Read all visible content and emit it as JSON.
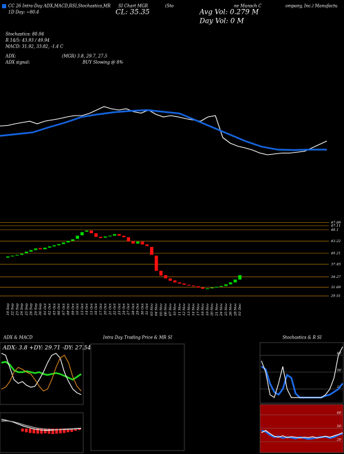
{
  "header": {
    "title_parts": [
      "CC 26 Intra-Day ADX,MACD,R",
      "SI,Stochastics,MR",
      "SI Chart MGR",
      "(Sto",
      "ne Munsch C",
      "ompany, Inc.) Manufactu"
    ],
    "day_change": "1D Day: ~80.4",
    "close": "CL: 35.35",
    "avg_vol": "Avg Vol: 0.279 M",
    "day_vol": "Day Vol: 0  M",
    "stochastics": "Stochastics: 80.94",
    "rsi": "R 14/5: 43.93 / 49.94",
    "macd": "MACD: 31.92, 33.82, -1.4 C",
    "adx_label": "ADX:",
    "adx_values": "(MGR) 3.8, 29.7, 27.5",
    "adx_signal_label": "ADX  signal:",
    "adx_signal": "BUY Slowing @ 8%"
  },
  "chart_data": [
    {
      "type": "line",
      "ylim": [
        29,
        51.4
      ],
      "series": [
        {
          "color": "#ffffff",
          "values": [
            41.3,
            41.4,
            41.8,
            42.1,
            42.4,
            41.8,
            42.4,
            42.7,
            43.0,
            43.4,
            43.7,
            43.7,
            44.2,
            45.0,
            45.8,
            45.3,
            45.0,
            45.3,
            44.6,
            44.3,
            45.0,
            44.0,
            43.4,
            43.7,
            43.4,
            43.0,
            42.7,
            42.4,
            43.4,
            43.7,
            38.6,
            37.3,
            36.6,
            36.2,
            35.7,
            35.0,
            34.6,
            34.8,
            35.0,
            35.0,
            35.2,
            35.4,
            36.2,
            37.0,
            37.8
          ]
        },
        {
          "color": "#1565e0",
          "values": [
            39.0,
            39.4,
            39.8,
            41.0,
            42.1,
            43.4,
            44.0,
            44.5,
            44.8,
            45.0,
            44.6,
            44.2,
            42.6,
            41.0,
            39.4,
            37.8,
            36.5,
            35.8,
            35.7,
            35.8,
            35.8
          ]
        }
      ]
    },
    {
      "type": "candlestick",
      "ylim": [
        28.5,
        48.5
      ],
      "up_color": "#00dd00",
      "down_color": "#ff1010",
      "level_color": "#b8760b",
      "yticks": [
        47.89,
        47.11,
        46.1,
        43.22,
        40.21,
        37.45,
        34.27,
        31.69,
        29.51
      ],
      "categories": [
        "19 Sep",
        "22 Sep",
        "23 Sep",
        "24 Sep",
        "25 Sep",
        "26 Sep",
        "29 Sep",
        "30 Sep",
        "01 Oct",
        "02 Oct",
        "03 Oct",
        "06 Oct",
        "07 Oct",
        "08 Oct",
        "09 Oct",
        "10 Oct",
        "13 Oct",
        "14 Oct",
        "15 Oct",
        "16 Oct",
        "17 Oct",
        "20 Oct",
        "21 Oct",
        "22 Oct",
        "23 Oct",
        "24 Oct",
        "27 Oct",
        "28 Oct",
        "29 Oct",
        "30 Oct",
        "31 Oct",
        "03 Nov",
        "04 Nov",
        "05 Nov",
        "06 Nov",
        "07 Nov",
        "10 Nov",
        "11 Nov",
        "12 Nov",
        "13 Nov",
        "14 Nov",
        "17 Nov",
        "18 Nov",
        "19 Nov",
        "20 Nov",
        "21 Nov",
        "24 Nov",
        "25 Nov",
        "26 Nov",
        "28 Nov",
        "01 Dec"
      ],
      "open": [
        39.1,
        39.4,
        39.6,
        39.8,
        40.2,
        40.6,
        41.0,
        41.5,
        41.2,
        41.6,
        41.9,
        42.2,
        42.5,
        42.9,
        43.3,
        43.8,
        44.7,
        45.6,
        45.9,
        45.2,
        44.3,
        44.1,
        44.4,
        44.6,
        45.0,
        44.6,
        44.2,
        43.2,
        42.6,
        43.1,
        42.4,
        41.8,
        39.6,
        35.8,
        34.7,
        33.9,
        33.4,
        32.9,
        32.6,
        32.3,
        32.1,
        31.9,
        31.6,
        31.2,
        31.4,
        31.6,
        31.8,
        32.0,
        32.4,
        32.9,
        33.6
      ],
      "close": [
        39.4,
        39.6,
        39.8,
        40.1,
        40.6,
        41.0,
        41.4,
        41.2,
        41.6,
        41.9,
        42.2,
        42.5,
        42.9,
        43.3,
        43.7,
        44.6,
        45.5,
        45.9,
        45.2,
        44.3,
        44.0,
        44.4,
        44.6,
        45.0,
        44.6,
        44.2,
        43.2,
        42.6,
        43.1,
        42.4,
        42.0,
        39.8,
        35.8,
        34.6,
        33.9,
        33.3,
        32.9,
        32.6,
        32.3,
        32.1,
        31.9,
        31.6,
        31.3,
        31.4,
        31.6,
        31.8,
        32.0,
        32.4,
        32.9,
        33.6,
        34.7
      ]
    },
    {
      "type": "line",
      "title": "ADX & MACD",
      "subtitle": "ADX: 3.8  +DY: 29.71  -DY: 27.54",
      "ylim": [
        0,
        60
      ],
      "series": [
        {
          "color": "#22dd22",
          "values": [
            40,
            41,
            38,
            32,
            30,
            30,
            31,
            30,
            29,
            30,
            28,
            27,
            28,
            29,
            28,
            26,
            24,
            22,
            25,
            28
          ]
        },
        {
          "color": "#ffffff",
          "values": [
            50,
            48,
            35,
            22,
            18,
            20,
            16,
            14,
            15,
            22,
            30,
            40,
            48,
            50,
            45,
            30,
            20,
            12,
            8,
            6
          ]
        },
        {
          "color": "#e08a1e",
          "values": [
            12,
            14,
            20,
            30,
            35,
            33,
            30,
            28,
            22,
            15,
            10,
            12,
            22,
            35,
            45,
            48,
            40,
            25,
            15,
            10
          ]
        }
      ]
    },
    {
      "type": "bar",
      "ylim": [
        -6,
        3
      ],
      "color": "#ff2020",
      "values": [
        -0.8,
        -1.0,
        -1.2,
        -1.3,
        -1.4,
        -1.4,
        -1.3,
        -1.4,
        -1.5,
        -1.4,
        -1.3,
        -1.2,
        -1.0,
        -0.9,
        -0.6,
        -0.4
      ],
      "series": [
        {
          "color": "#ffffff",
          "values": [
            2.5,
            2.2,
            1.8,
            1.2,
            0.6,
            0.2,
            -0.2,
            -0.4,
            -0.5,
            -0.4,
            -0.3,
            -0.2,
            -0.1,
            0.0,
            0.1
          ]
        },
        {
          "color": "#bbbbbb",
          "values": [
            2.0,
            2.1,
            1.9,
            1.5,
            1.0,
            0.6,
            0.2,
            0.0,
            -0.2,
            -0.3,
            -0.3,
            -0.3,
            -0.2,
            -0.1,
            0.0
          ]
        }
      ]
    },
    {
      "type": "panel",
      "title": "Intra Day Trading Price & MR SI"
    },
    {
      "type": "line",
      "title": "Stochastics & R SI",
      "ylim": [
        0,
        100
      ],
      "yticks": [
        20,
        50,
        80
      ],
      "series": [
        {
          "color": "#1e6ff0",
          "values": [
            60,
            55,
            30,
            15,
            10,
            20,
            45,
            40,
            12,
            5,
            5,
            5,
            5,
            5,
            5,
            8,
            10,
            15,
            20,
            30
          ]
        },
        {
          "color": "#ffffff",
          "values": [
            70,
            50,
            10,
            5,
            30,
            60,
            20,
            5,
            5,
            5,
            5,
            5,
            5,
            5,
            5,
            10,
            20,
            40,
            80,
            95
          ]
        }
      ]
    },
    {
      "type": "line",
      "ylim": [
        0,
        100
      ],
      "yticks": [
        20,
        50,
        80
      ],
      "background": "#9a0000",
      "series": [
        {
          "color": "#1e6ff0",
          "values": [
            45,
            42,
            35,
            30,
            32,
            28,
            30,
            29,
            27,
            30,
            28,
            26,
            27,
            29,
            30,
            31,
            28,
            30,
            35,
            38
          ]
        },
        {
          "color": "#ffffff",
          "values": [
            40,
            45,
            38,
            32,
            30,
            33,
            29,
            31,
            30,
            28,
            30,
            29,
            31,
            28,
            30,
            32,
            30,
            33,
            36,
            40
          ]
        }
      ]
    }
  ]
}
